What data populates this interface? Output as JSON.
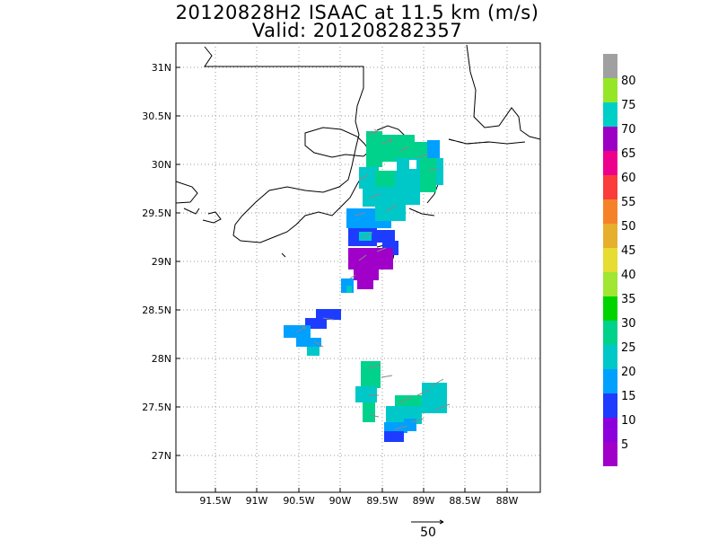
{
  "title_line1": "20120828H2 ISAAC at 11.5 km (m/s)",
  "title_line2": "Valid: 201208282357",
  "lon_labels": [
    "91.5W",
    "91W",
    "90.5W",
    "90W",
    "89.5W",
    "89W",
    "88.5W",
    "88W"
  ],
  "lat_labels": [
    "31N",
    "30.5N",
    "30N",
    "29.5N",
    "29N",
    "28.5N",
    "28N",
    "27.5N",
    "27N"
  ],
  "colorbar": {
    "labels": [
      "80",
      "75",
      "70",
      "65",
      "60",
      "55",
      "50",
      "45",
      "40",
      "35",
      "30",
      "25",
      "20",
      "15",
      "10",
      "5"
    ],
    "colors": [
      "#a0a0a0",
      "#96e628",
      "#00cfc8",
      "#9c00c4",
      "#ec008c",
      "#fa3c3c",
      "#f58228",
      "#e6af2d",
      "#e6dc32",
      "#a0e632",
      "#00d400",
      "#00d28c",
      "#00c8c8",
      "#00a0ff",
      "#1e3cff",
      "#8c00dc",
      "#a000c8"
    ]
  },
  "reference_vector_label": "50",
  "map": {
    "lon_range": [
      -92.0,
      -87.5
    ],
    "lat_range": [
      26.6,
      31.4
    ],
    "grid": true,
    "projection": "lat-lon"
  }
}
